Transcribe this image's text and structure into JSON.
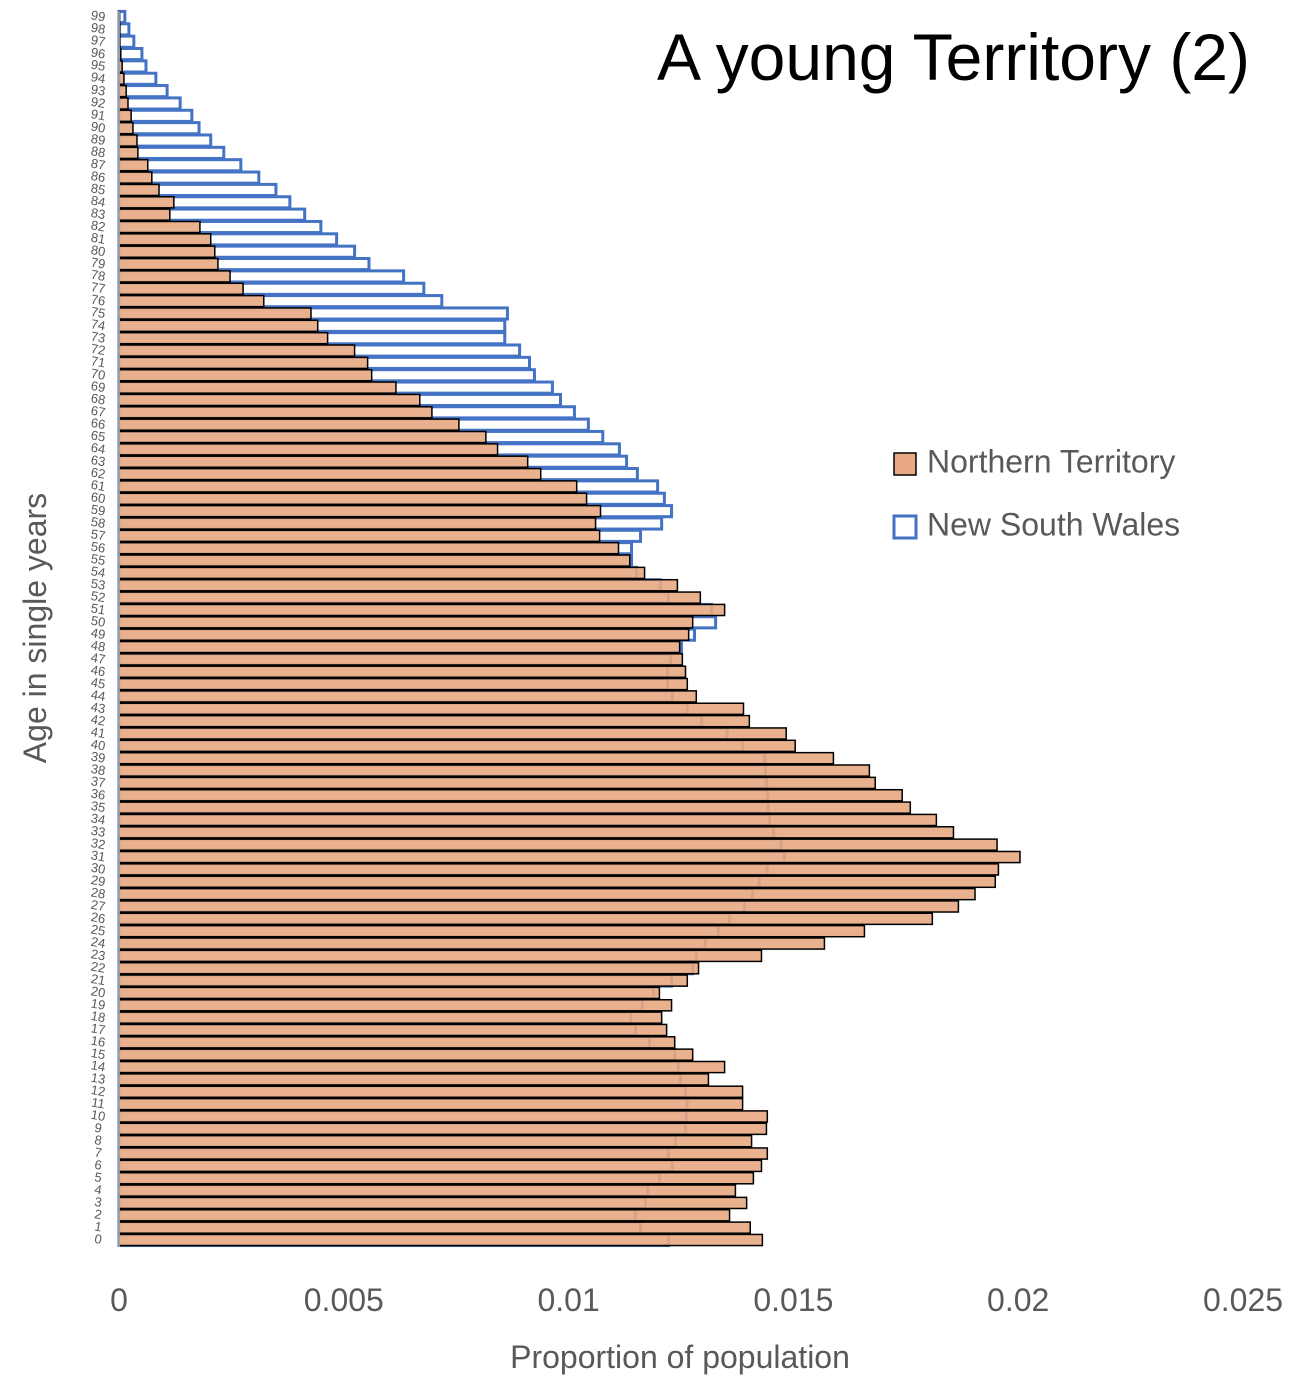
{
  "chart_data": {
    "type": "hbar_overlap",
    "title": "A young Territory (2)",
    "x_label": "Proportion of population",
    "y_label": "Age in single years",
    "categories": [
      "0",
      "1",
      "2",
      "3",
      "4",
      "5",
      "6",
      "7",
      "8",
      "9",
      "10",
      "11",
      "12",
      "13",
      "14",
      "15",
      "16",
      "17",
      "18",
      "19",
      "20",
      "21",
      "22",
      "23",
      "24",
      "25",
      "26",
      "27",
      "28",
      "29",
      "30",
      "31",
      "32",
      "33",
      "34",
      "35",
      "36",
      "37",
      "38",
      "39",
      "40",
      "41",
      "42",
      "43",
      "44",
      "45",
      "46",
      "47",
      "48",
      "49",
      "50",
      "51",
      "52",
      "53",
      "54",
      "55",
      "56",
      "57",
      "58",
      "59",
      "60",
      "61",
      "62",
      "63",
      "64",
      "65",
      "66",
      "67",
      "68",
      "69",
      "70",
      "71",
      "72",
      "73",
      "74",
      "75",
      "76",
      "77",
      "78",
      "79",
      "80",
      "81",
      "82",
      "83",
      "84",
      "85",
      "86",
      "87",
      "88",
      "89",
      "90",
      "91",
      "92",
      "93",
      "94",
      "95",
      "96",
      "97",
      "98",
      "99"
    ],
    "series": [
      {
        "name": "Northern Territory",
        "color": "#e8a882",
        "stroke": "#000000",
        "filled": true,
        "values": [
          0.01431,
          0.01404,
          0.01358,
          0.01396,
          0.01371,
          0.01411,
          0.01429,
          0.01442,
          0.01407,
          0.0144,
          0.01442,
          0.01387,
          0.01387,
          0.01311,
          0.01347,
          0.01276,
          0.01236,
          0.01218,
          0.01207,
          0.01229,
          0.01202,
          0.01264,
          0.01289,
          0.01429,
          0.01569,
          0.01658,
          0.01809,
          0.01867,
          0.01904,
          0.01949,
          0.01956,
          0.02004,
          0.01953,
          0.01856,
          0.01818,
          0.0176,
          0.01742,
          0.01682,
          0.01669,
          0.01589,
          0.01504,
          0.01484,
          0.01402,
          0.01389,
          0.01284,
          0.01264,
          0.0126,
          0.01253,
          0.01247,
          0.01267,
          0.01276,
          0.01347,
          0.01293,
          0.01242,
          0.01169,
          0.01136,
          0.01111,
          0.01069,
          0.0106,
          0.01071,
          0.0104,
          0.01018,
          0.00938,
          0.00909,
          0.00842,
          0.00816,
          0.00756,
          0.00696,
          0.00669,
          0.00616,
          0.00562,
          0.00553,
          0.00524,
          0.00464,
          0.00442,
          0.00427,
          0.00322,
          0.00276,
          0.00247,
          0.0022,
          0.00213,
          0.00204,
          0.0018,
          0.00113,
          0.00122,
          0.00089,
          0.00073,
          0.00064,
          0.00042,
          0.0004,
          0.00031,
          0.00027,
          0.0002,
          0.00016,
          0.00011,
          7e-05,
          4e-05,
          2e-05,
          2e-05,
          1e-05
        ]
      },
      {
        "name": "New South Wales",
        "color": "#4472c4",
        "filled": false,
        "values": [
          0.01222,
          0.0116,
          0.01149,
          0.01171,
          0.01176,
          0.01202,
          0.01231,
          0.01222,
          0.01238,
          0.0126,
          0.01262,
          0.01264,
          0.0126,
          0.01249,
          0.01244,
          0.01236,
          0.0118,
          0.01149,
          0.01138,
          0.01164,
          0.01189,
          0.01229,
          0.01276,
          0.01284,
          0.01304,
          0.01333,
          0.01358,
          0.01391,
          0.01409,
          0.01424,
          0.01442,
          0.0148,
          0.01473,
          0.01456,
          0.01447,
          0.01444,
          0.01442,
          0.0144,
          0.01438,
          0.01436,
          0.01387,
          0.01353,
          0.01296,
          0.01264,
          0.01231,
          0.0122,
          0.0122,
          0.01227,
          0.01251,
          0.0128,
          0.01327,
          0.01318,
          0.01222,
          0.01204,
          0.01151,
          0.0114,
          0.0114,
          0.0116,
          0.01207,
          0.01229,
          0.01213,
          0.01198,
          0.01153,
          0.01129,
          0.01113,
          0.01076,
          0.01044,
          0.01013,
          0.00982,
          0.00964,
          0.00924,
          0.00913,
          0.00891,
          0.00858,
          0.00858,
          0.00864,
          0.00718,
          0.00678,
          0.00633,
          0.00556,
          0.00524,
          0.00484,
          0.00449,
          0.00413,
          0.0038,
          0.00349,
          0.00311,
          0.00271,
          0.00233,
          0.00204,
          0.00178,
          0.00162,
          0.00136,
          0.00107,
          0.00082,
          0.0006,
          0.00051,
          0.00033,
          0.00022,
          0.00013
        ]
      }
    ],
    "xlim": [
      0,
      0.025
    ],
    "xticks": [
      0,
      0.005,
      0.01,
      0.015,
      0.02,
      0.025
    ],
    "legend": "right",
    "grid": false
  }
}
